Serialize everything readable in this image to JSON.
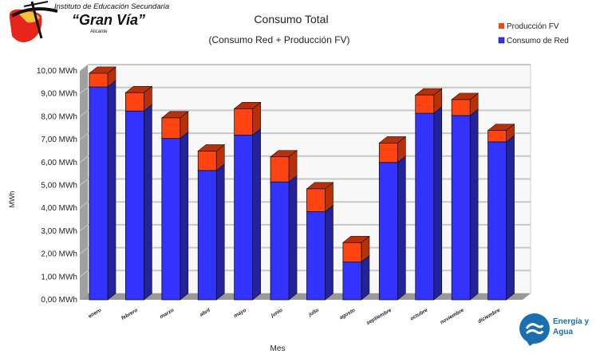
{
  "logo": {
    "line1": "Instituto de Educación Secundaria",
    "line2": "“Gran Vía”",
    "line3": "Alicante"
  },
  "badge": {
    "text1": "Energía y",
    "text2": "Agua"
  },
  "colors": {
    "red_front": "#3333ff",
    "red_side": "#22229a",
    "pv_front": "#ff4411",
    "pv_side": "#b83008",
    "wall": "#f8f8f8",
    "floor": "#999999",
    "left_wall": "#a0a0a0"
  },
  "chart_data": {
    "type": "bar",
    "stacked": true,
    "title": "Consumo Total",
    "subtitle": "(Consumo Red + Producción FV)",
    "xlabel": "Mes",
    "ylabel": "MWh",
    "ylim": [
      0,
      10
    ],
    "yticks": [
      "0,00 MWh",
      "1,00 MWh",
      "2,00 MWh",
      "3,00 MWh",
      "4,00 MWh",
      "5,00 MWh",
      "6,00 MWh",
      "7,00 MWh",
      "8,00 MWh",
      "9,00 MWh",
      "10,00 MWh"
    ],
    "grid": true,
    "legend_position": "top-right",
    "categories": [
      "enero",
      "febrero",
      "marzo",
      "abril",
      "mayo",
      "junio",
      "julio",
      "agosto",
      "septiembre",
      "octubre",
      "noviembre",
      "diciembre"
    ],
    "series": [
      {
        "name": "Consumo de Red",
        "values": [
          9.3,
          8.25,
          7.05,
          5.65,
          7.2,
          5.15,
          3.85,
          1.65,
          6.0,
          8.15,
          8.05,
          6.9
        ]
      },
      {
        "name": "Producción FV",
        "values": [
          0.6,
          0.8,
          0.9,
          0.85,
          1.15,
          1.1,
          1.0,
          0.85,
          0.85,
          0.8,
          0.7,
          0.5
        ]
      }
    ]
  }
}
